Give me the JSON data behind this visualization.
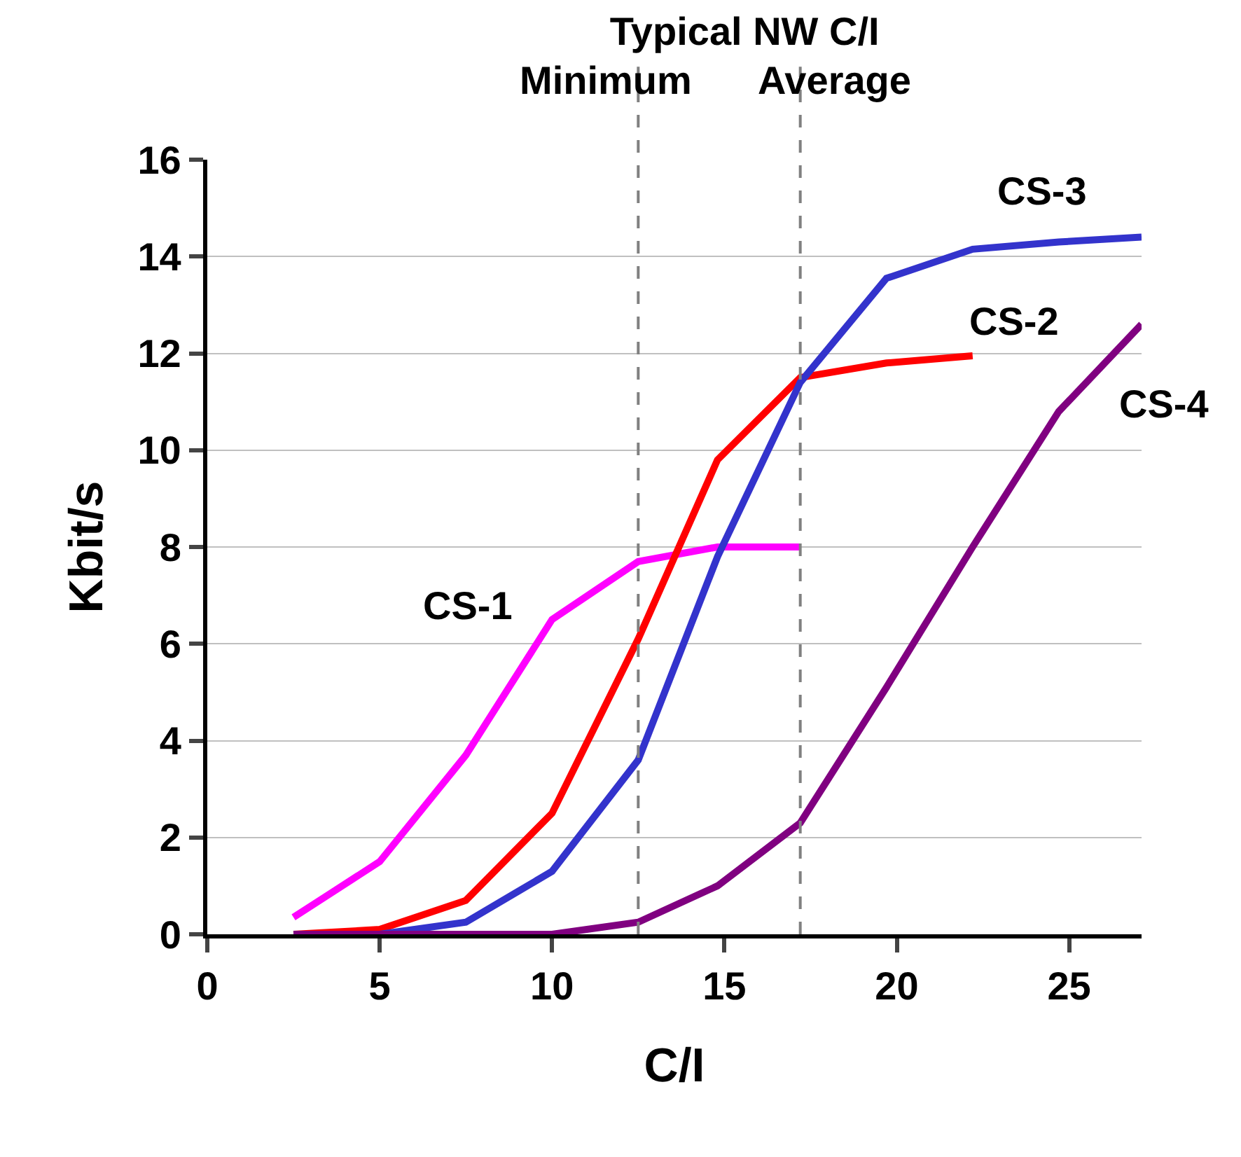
{
  "chart_data": {
    "type": "line",
    "title": "Typical NW C/I",
    "xlabel": "C/I",
    "ylabel": "Kbit/s",
    "xlim": [
      0,
      27.1
    ],
    "xticks": [
      0,
      5,
      10,
      15,
      20,
      25
    ],
    "ylim": [
      0,
      16
    ],
    "yticks": [
      0,
      2,
      4,
      6,
      8,
      10,
      12,
      14,
      16
    ],
    "grid": "y",
    "legend": false,
    "marker": "none",
    "line_style": "solid",
    "ref_lines": [
      {
        "axis": "x",
        "value": 12.5,
        "label": "Minimum",
        "color": "#808080",
        "line_style": "dashed"
      },
      {
        "axis": "x",
        "value": 17.2,
        "label": "Average",
        "color": "#808080",
        "line_style": "dashed"
      }
    ],
    "series": [
      {
        "name": "CS-1",
        "color": "#ff00ff",
        "x": [
          2.5,
          5,
          7.5,
          10,
          12.5,
          14.8,
          17.2
        ],
        "values": [
          0.35,
          1.5,
          3.7,
          6.5,
          7.7,
          8.0,
          8.0
        ]
      },
      {
        "name": "CS-2",
        "color": "#ff0000",
        "x": [
          2.5,
          5,
          7.5,
          10,
          12.5,
          14.8,
          17.2,
          19.7,
          22.2
        ],
        "values": [
          0,
          0.1,
          0.7,
          2.5,
          6.1,
          9.8,
          11.5,
          11.8,
          11.95
        ]
      },
      {
        "name": "CS-3",
        "color": "#3333cc",
        "x": [
          2.5,
          5,
          7.5,
          10,
          12.5,
          14.8,
          17.2,
          19.7,
          22.2,
          24.7,
          27.1
        ],
        "values": [
          0,
          0,
          0.25,
          1.3,
          3.6,
          7.8,
          11.4,
          13.55,
          14.15,
          14.3,
          14.4
        ]
      },
      {
        "name": "CS-4",
        "color": "#800080",
        "x": [
          2.5,
          5,
          7.5,
          10,
          12.5,
          14.8,
          17.2,
          19.7,
          22.2,
          24.7,
          27.1
        ],
        "values": [
          0,
          0,
          0,
          0,
          0.25,
          1.0,
          2.3,
          5.1,
          8.0,
          10.8,
          12.6
        ]
      }
    ]
  }
}
